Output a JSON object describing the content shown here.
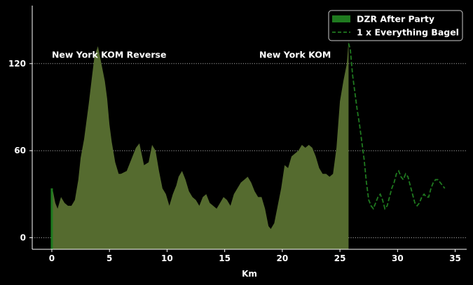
{
  "chart_data": {
    "type": "area",
    "xlabel": "Km",
    "ylabel": "",
    "title": "",
    "xlim": [
      -1.7,
      36.0
    ],
    "ylim": [
      -8,
      160
    ],
    "xticks": [
      0,
      5,
      10,
      15,
      20,
      25,
      30,
      35
    ],
    "yticks": [
      0,
      60,
      120
    ],
    "grid": {
      "y": true,
      "x": false,
      "style": "dotted"
    },
    "legend_position": "top-right",
    "annotations": [
      {
        "text": "New York KOM Reverse",
        "x": 0.0,
        "y": 124
      },
      {
        "text": "New York KOM",
        "x": 18.0,
        "y": 124
      }
    ],
    "series": [
      {
        "name": "DZR After Party",
        "kind": "area",
        "line_color": "#1f7a1f",
        "fill_color": "#556b2f",
        "x": [
          0.0,
          0.1,
          0.3,
          0.5,
          0.8,
          1.1,
          1.4,
          1.7,
          2.0,
          2.3,
          2.5,
          2.8,
          3.0,
          3.2,
          3.5,
          3.7,
          4.0,
          4.3,
          4.6,
          4.8,
          5.0,
          5.2,
          5.5,
          5.8,
          6.0,
          6.5,
          7.0,
          7.3,
          7.6,
          8.0,
          8.4,
          8.7,
          9.0,
          9.3,
          9.6,
          9.9,
          10.2,
          10.5,
          10.8,
          11.0,
          11.3,
          11.6,
          11.9,
          12.2,
          12.5,
          12.8,
          13.1,
          13.4,
          13.7,
          14.0,
          14.3,
          14.6,
          14.9,
          15.2,
          15.5,
          15.8,
          16.1,
          16.4,
          16.7,
          17.0,
          17.3,
          17.6,
          17.9,
          18.2,
          18.5,
          18.8,
          19.0,
          19.3,
          19.6,
          19.9,
          20.2,
          20.5,
          20.8,
          21.1,
          21.4,
          21.7,
          22.0,
          22.3,
          22.6,
          22.9,
          23.2,
          23.5,
          23.8,
          24.1,
          24.4,
          24.7,
          25.0,
          25.3,
          25.6,
          25.75
        ],
        "y": [
          34,
          32,
          24,
          20,
          28,
          24,
          22,
          22,
          26,
          40,
          55,
          68,
          80,
          92,
          112,
          125,
          132,
          120,
          108,
          96,
          78,
          66,
          52,
          44,
          44,
          46,
          56,
          62,
          65,
          50,
          52,
          64,
          60,
          46,
          34,
          30,
          22,
          30,
          36,
          42,
          46,
          40,
          32,
          28,
          26,
          22,
          28,
          30,
          24,
          22,
          20,
          24,
          28,
          26,
          22,
          30,
          34,
          38,
          40,
          42,
          38,
          32,
          28,
          28,
          20,
          8,
          6,
          10,
          22,
          34,
          50,
          48,
          56,
          58,
          60,
          64,
          62,
          64,
          62,
          56,
          48,
          44,
          44,
          42,
          44,
          62,
          94,
          108,
          120,
          136
        ]
      },
      {
        "name": "1 x Everything Bagel",
        "kind": "dashed-line",
        "line_color": "#1f7a1f",
        "x": [
          25.75,
          25.9,
          26.1,
          26.3,
          26.5,
          26.7,
          26.9,
          27.1,
          27.3,
          27.5,
          27.7,
          27.9,
          28.1,
          28.3,
          28.5,
          28.7,
          28.9,
          29.1,
          29.3,
          29.5,
          29.7,
          29.9,
          30.1,
          30.3,
          30.5,
          30.7,
          30.9,
          31.1,
          31.3,
          31.5,
          31.7,
          31.9,
          32.1,
          32.3,
          32.5,
          32.7,
          32.9,
          33.1,
          33.3,
          33.5,
          33.7,
          33.9,
          34.1
        ],
        "y": [
          134,
          130,
          112,
          100,
          88,
          78,
          66,
          54,
          38,
          26,
          22,
          20,
          24,
          28,
          30,
          26,
          20,
          22,
          28,
          34,
          38,
          44,
          46,
          42,
          40,
          44,
          42,
          36,
          30,
          24,
          22,
          24,
          28,
          30,
          28,
          28,
          34,
          38,
          40,
          40,
          38,
          36,
          34
        ]
      }
    ]
  }
}
